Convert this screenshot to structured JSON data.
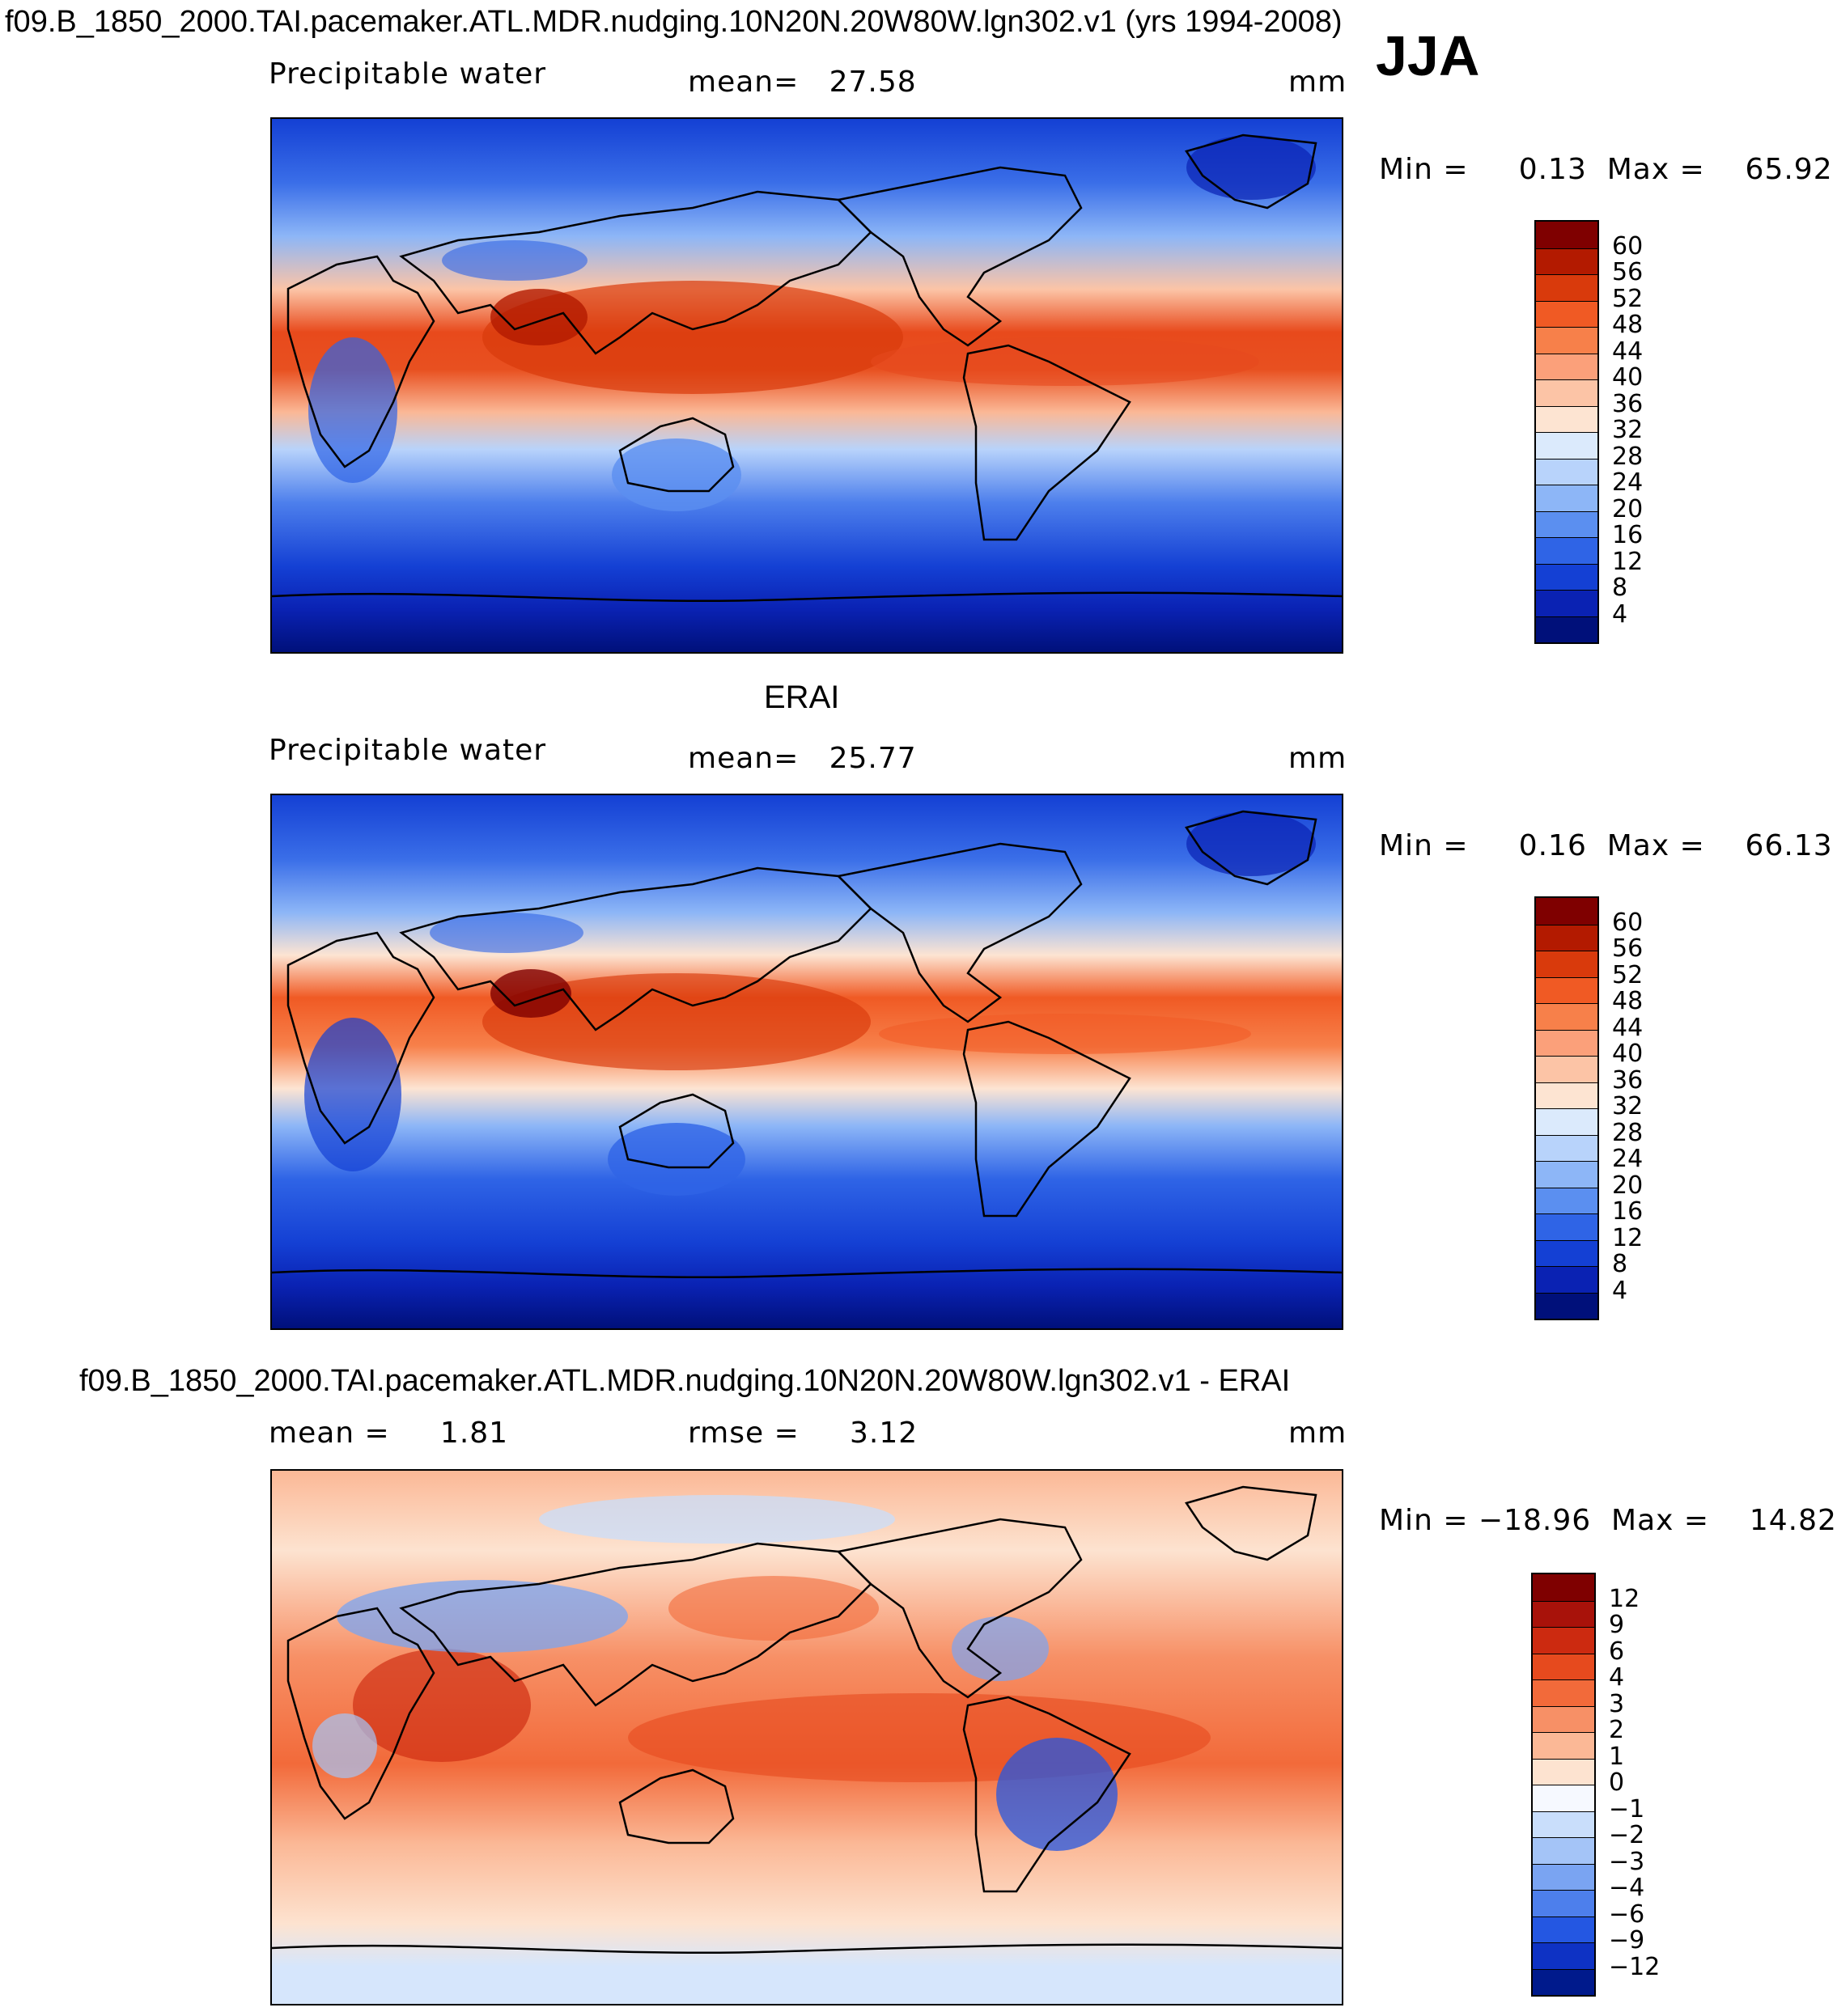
{
  "figure": {
    "title": "f09.B_1850_2000.TAI.pacemaker.ATL.MDR.nudging.10N20N.20W80W.lgn302.v1 (yrs 1994-2008)",
    "season": "JJA"
  },
  "panels": [
    {
      "id": "model",
      "heading": "",
      "left_label": "Precipitable water",
      "center_label": "mean=   27.58",
      "units": "mm",
      "minmax": "Min =     0.13  Max =    65.92",
      "colorbar_labels": [
        "60",
        "56",
        "52",
        "48",
        "44",
        "40",
        "36",
        "32",
        "28",
        "24",
        "20",
        "16",
        "12",
        "8",
        "4"
      ],
      "colorbar_colors": [
        "#7f0000",
        "#b31a00",
        "#d93a0c",
        "#f05a24",
        "#f7804a",
        "#fba07a",
        "#fcc4a6",
        "#fde4d2",
        "#dbeafc",
        "#b8d3fb",
        "#8db6f7",
        "#5b8ff0",
        "#2f64e6",
        "#1440d4",
        "#0a22b3",
        "#00107a"
      ]
    },
    {
      "id": "obs",
      "heading": "ERAI",
      "left_label": "Precipitable water",
      "center_label": "mean=   25.77",
      "units": "mm",
      "minmax": "Min =     0.16  Max =    66.13",
      "colorbar_labels": [
        "60",
        "56",
        "52",
        "48",
        "44",
        "40",
        "36",
        "32",
        "28",
        "24",
        "20",
        "16",
        "12",
        "8",
        "4"
      ],
      "colorbar_colors": [
        "#7f0000",
        "#b31a00",
        "#d93a0c",
        "#f05a24",
        "#f7804a",
        "#fba07a",
        "#fcc4a6",
        "#fde4d2",
        "#dbeafc",
        "#b8d3fb",
        "#8db6f7",
        "#5b8ff0",
        "#2f64e6",
        "#1440d4",
        "#0a22b3",
        "#00107a"
      ]
    },
    {
      "id": "diff",
      "heading": "f09.B_1850_2000.TAI.pacemaker.ATL.MDR.nudging.10N20N.20W80W.lgn302.v1 - ERAI",
      "left_label": "mean =     1.81",
      "center_label": "rmse =     3.12",
      "units": "mm",
      "minmax": "Min = −18.96  Max =    14.82",
      "colorbar_labels": [
        "12",
        "9",
        "6",
        "4",
        "3",
        "2",
        "1",
        "0",
        "−1",
        "−2",
        "−3",
        "−4",
        "−6",
        "−9",
        "−12"
      ],
      "colorbar_colors": [
        "#7f0000",
        "#a8120a",
        "#cc2a10",
        "#e64a1e",
        "#f26a3a",
        "#f79066",
        "#fbb896",
        "#fde3d0",
        "#f6f9ff",
        "#c9defb",
        "#a4c4f7",
        "#7aa4f2",
        "#4d7fec",
        "#2457e2",
        "#0e32c4",
        "#001a8c"
      ]
    }
  ]
}
